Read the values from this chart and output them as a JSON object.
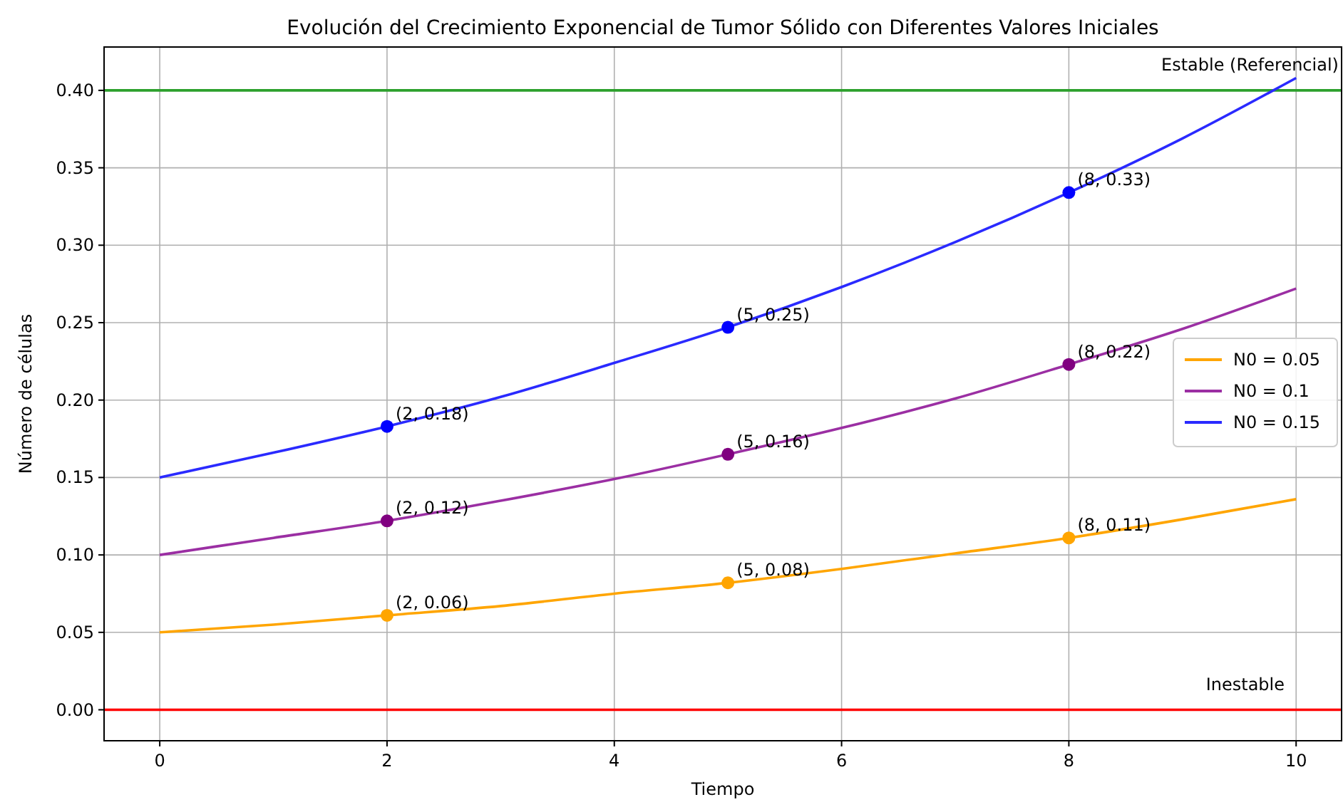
{
  "chart_data": {
    "type": "line",
    "title": "Evolución del Crecimiento Exponencial de Tumor Sólido con Diferentes Valores Iniciales",
    "xlabel": "Tiempo",
    "ylabel": "Número de células",
    "x": [
      0,
      1,
      2,
      3,
      4,
      5,
      6,
      7,
      8,
      9,
      10
    ],
    "series": [
      {
        "name": "N0 = 0.05",
        "color": "#ffa500",
        "values": [
          0.05,
          0.055,
          0.061,
          0.067,
          0.075,
          0.082,
          0.091,
          0.101,
          0.111,
          0.123,
          0.136
        ]
      },
      {
        "name": "N0 = 0.1",
        "color": "#9b2fa3",
        "values": [
          0.1,
          0.111,
          0.122,
          0.135,
          0.149,
          0.165,
          0.182,
          0.201,
          0.223,
          0.246,
          0.272
        ]
      },
      {
        "name": "N0 = 0.15",
        "color": "#2a2aff",
        "values": [
          0.15,
          0.166,
          0.183,
          0.202,
          0.224,
          0.247,
          0.273,
          0.302,
          0.334,
          0.369,
          0.408
        ]
      },
      {
        "type": "scatter",
        "marker": "circle",
        "color": "#ffa500",
        "x": [
          2,
          5,
          8
        ],
        "values": [
          0.061,
          0.082,
          0.111
        ]
      },
      {
        "type": "scatter",
        "marker": "circle",
        "color": "#800080",
        "x": [
          2,
          5,
          8
        ],
        "values": [
          0.122,
          0.165,
          0.223
        ]
      },
      {
        "type": "scatter",
        "marker": "circle",
        "color": "#0000ff",
        "x": [
          2,
          5,
          8
        ],
        "values": [
          0.183,
          0.247,
          0.334
        ]
      }
    ],
    "xlim": [
      -0.49,
      10.4
    ],
    "xticks": [
      0,
      2,
      4,
      6,
      8,
      10
    ],
    "ylim": [
      -0.02,
      0.428
    ],
    "yticks": [
      {
        "value": 0,
        "label": "0.00"
      },
      {
        "value": 0.05,
        "label": "0.05"
      },
      {
        "value": 0.1,
        "label": "0.10"
      },
      {
        "value": 0.15,
        "label": "0.15"
      },
      {
        "value": 0.2,
        "label": "0.20"
      },
      {
        "value": 0.25,
        "label": "0.25"
      },
      {
        "value": 0.3,
        "label": "0.30"
      },
      {
        "value": 0.35,
        "label": "0.35"
      },
      {
        "value": 0.4,
        "label": "0.40"
      }
    ],
    "ref_lines": [
      {
        "axis": "y",
        "value": 0.4,
        "label": "Estable (Referencial)",
        "color": "#2ca02c"
      },
      {
        "axis": "y",
        "value": 0,
        "label": "Inestable",
        "color": "#ff0000"
      }
    ],
    "annotations": [
      {
        "text": "(2, 0.06)",
        "x": 2,
        "y": 0.061
      },
      {
        "text": "(5, 0.08)",
        "x": 5,
        "y": 0.082
      },
      {
        "text": "(8, 0.11)",
        "x": 8,
        "y": 0.111
      },
      {
        "text": "(2, 0.12)",
        "x": 2,
        "y": 0.122
      },
      {
        "text": "(5, 0.16)",
        "x": 5,
        "y": 0.165
      },
      {
        "text": "(8, 0.22)",
        "x": 8,
        "y": 0.223
      },
      {
        "text": "(2, 0.18)",
        "x": 2,
        "y": 0.183
      },
      {
        "text": "(5, 0.25)",
        "x": 5,
        "y": 0.247
      },
      {
        "text": "(8, 0.33)",
        "x": 8,
        "y": 0.334
      }
    ],
    "grid": true,
    "legend": "right",
    "line_style": "solid"
  }
}
